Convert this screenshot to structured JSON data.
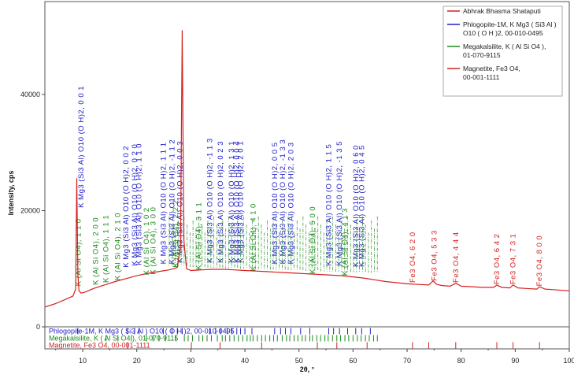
{
  "chart_data": {
    "type": "line",
    "xlabel": "2θ, °",
    "ylabel": "Intensity, cps",
    "xlim": [
      3,
      100
    ],
    "ylim": [
      0,
      56000
    ],
    "xticks": [
      10,
      20,
      30,
      40,
      50,
      60,
      70,
      80,
      90,
      100
    ],
    "yticks": [
      0,
      20000,
      40000
    ],
    "legend_position": "top-right",
    "legend": [
      {
        "text": [
          "Abhrak Bhasma Shataputi"
        ],
        "color": "#d62020"
      },
      {
        "text": [
          "Phlogopite-1M, K Mg3 ( Si3 Al )",
          "O10 ( O H )2, 00-010-0495"
        ],
        "color": "#2020c8"
      },
      {
        "text": [
          "Megakalsilite, K ( Al Si O4 ),",
          "01-070-9115"
        ],
        "color": "#1a8a1a"
      },
      {
        "text": [
          "Magnetite, Fe3 O4,",
          "00-001-1111"
        ],
        "color": "#d62020"
      }
    ],
    "series": [
      {
        "name": "Abhrak Bhasma Shataputi",
        "color": "#d62020",
        "x": [
          3,
          5,
          7,
          8.2,
          8.7,
          8.9,
          9.1,
          9.3,
          9.7,
          10.5,
          12,
          14,
          16,
          18,
          20,
          22,
          24,
          26,
          27.5,
          28.1,
          28.4,
          28.7,
          29.2,
          30,
          32,
          34,
          36,
          38,
          40,
          42,
          44,
          46,
          48,
          50,
          52,
          54,
          56,
          58,
          60,
          62,
          64,
          66,
          68,
          70,
          72,
          74,
          74.8,
          75.5,
          76.5,
          78,
          79,
          80,
          82,
          84,
          86,
          86.6,
          87.5,
          89,
          89.6,
          90.5,
          92,
          94,
          94.5,
          95.5,
          97,
          100
        ],
        "y": [
          3400,
          4000,
          4800,
          5300,
          6500,
          25500,
          9000,
          6200,
          5800,
          6000,
          6600,
          7200,
          7800,
          8300,
          8800,
          9200,
          9500,
          9800,
          10200,
          14000,
          51000,
          15000,
          10000,
          9700,
          9800,
          9900,
          9900,
          9800,
          9700,
          9600,
          9500,
          9400,
          9300,
          9200,
          9100,
          9000,
          8900,
          8800,
          8600,
          8400,
          8100,
          7800,
          7600,
          7400,
          7300,
          7200,
          7900,
          7300,
          7100,
          7000,
          7500,
          7000,
          6900,
          6800,
          6800,
          7200,
          6800,
          6700,
          7200,
          6700,
          6600,
          6500,
          6900,
          6500,
          6400,
          6200
        ]
      }
    ],
    "annotations": {
      "phlogopite": {
        "color": "#2020c8",
        "labels": [
          {
            "x": 9.7,
            "y": 20500,
            "text": "K Mg3 (Si3 Al) O10 (O H)2, 0 0 1"
          },
          {
            "x": 18.0,
            "y": 10200,
            "text": "K Mg3 (Si3 Al) O10 (O H)2, 0 0 2"
          },
          {
            "x": 19.6,
            "y": 10500,
            "text": "K Mg3 (Si3 Al) O10 (O H)2, 0 2 0"
          },
          {
            "x": 20.4,
            "y": 10600,
            "text": "K Mg3 (Si3 Al) O10 (O H)2, 1 1 0"
          },
          {
            "x": 24.9,
            "y": 10800,
            "text": "K Mg3 (Si3 Al) O10 (O H)2, 1 1 1"
          },
          {
            "x": 26.5,
            "y": 10800,
            "text": "K Mg3 (Si3 Al) O10 (O H)2, -1 1 2"
          },
          {
            "x": 28.0,
            "y": 11000,
            "text": "K Mg3 (Si3 Al) O10 (O H)2, 0 0 3"
          },
          {
            "x": 33.5,
            "y": 11000,
            "text": "K Mg3 (Si3 Al) O10 (O H)2, -1 1 3"
          },
          {
            "x": 35.5,
            "y": 11000,
            "text": "K Mg3 (Si3 Al) O10 (O H)2, 0 2 3"
          },
          {
            "x": 37.5,
            "y": 11000,
            "text": "K Mg3 (Si3 Al) O10 (O H)2, 1 3 1"
          },
          {
            "x": 38.5,
            "y": 11000,
            "text": "K Mg3 (Si3 Al) O10 (O H)2, 0 0 4"
          },
          {
            "x": 39.2,
            "y": 11000,
            "text": "K Mg3 (Si3 Al) O10 (O H)2, 2 0 1"
          },
          {
            "x": 45.5,
            "y": 10800,
            "text": "K Mg3 (Si3 Al) O10 (O H)2, 0 0 5"
          },
          {
            "x": 47.0,
            "y": 10800,
            "text": "K Mg3 (Si3 Al) O10 (O H)2, -1 3 3"
          },
          {
            "x": 48.5,
            "y": 10800,
            "text": "K Mg3 (Si3 Al) O10 (O H)2, 2 0 3"
          },
          {
            "x": 55.5,
            "y": 10500,
            "text": "K Mg3 (Si3 Al) O10 (O H)2, 1 1 5"
          },
          {
            "x": 57.5,
            "y": 10500,
            "text": "K Mg3 (Si3 Al) O10 (O H)2, -1 3 5"
          },
          {
            "x": 60.5,
            "y": 10300,
            "text": "K Mg3 (Si3 Al) O10 (O H)2, 0 6 0"
          },
          {
            "x": 61.6,
            "y": 10300,
            "text": "K Mg3 (Si3 Al) O10 (O H)2, 0 4 5"
          }
        ]
      },
      "megakalsilite": {
        "color": "#1a8a1a",
        "labels": [
          {
            "x": 9.2,
            "y": 7000,
            "text": "K (Al Si O4), 1 1 0"
          },
          {
            "x": 12.4,
            "y": 7200,
            "text": "K (Al Si O4), 2 0 0"
          },
          {
            "x": 14.3,
            "y": 7600,
            "text": "K (Al Si O4), 1 1 1"
          },
          {
            "x": 16.5,
            "y": 8000,
            "text": "K (Al Si O4), 2 1 0"
          },
          {
            "x": 21.8,
            "y": 8900,
            "text": "K (Al Si O4), 1 0 2"
          },
          {
            "x": 23.0,
            "y": 9000,
            "text": "K (Al Si O4), 3 0 0"
          },
          {
            "x": 27.2,
            "y": 10200,
            "text": "K (Al Si O4), 2 2 2"
          },
          {
            "x": 31.5,
            "y": 9800,
            "text": "K (Al Si O4), 3 1 1"
          },
          {
            "x": 41.5,
            "y": 9600,
            "text": "K (Al Si O4), 4 1 0"
          },
          {
            "x": 52.5,
            "y": 9100,
            "text": "K (Al Si O4), 5 0 0"
          },
          {
            "x": 58.5,
            "y": 8800,
            "text": "K (Al Si O4), 4 1 3"
          }
        ],
        "filler_range": [
          26,
          65
        ],
        "filler_top": 19000
      },
      "magnetite": {
        "color": "#d62020",
        "labels": [
          {
            "x": 71.0,
            "y": 7600,
            "text": "Fe3 O4, 6 2 0"
          },
          {
            "x": 75.0,
            "y": 7900,
            "text": "Fe3 O4, 5 3 3"
          },
          {
            "x": 79.0,
            "y": 7600,
            "text": "Fe3 O4, 4 4 4"
          },
          {
            "x": 86.6,
            "y": 7300,
            "text": "Fe3 O4, 6 4 2"
          },
          {
            "x": 89.6,
            "y": 7300,
            "text": "Fe3 O4, 7 3 1"
          },
          {
            "x": 94.5,
            "y": 7000,
            "text": "Fe3 O4, 8 0 0"
          }
        ]
      }
    },
    "reference_strips": [
      {
        "label": "Phlogopite-1M, K Mg3 ( Si3 Al ) O10 ( O H )2, 00-010-0495",
        "color": "#2020c8",
        "sticks": [
          9.1,
          18.2,
          19.6,
          20.4,
          24.9,
          26.5,
          27.5,
          28.4,
          33.5,
          34.6,
          35.5,
          36.7,
          37.6,
          38.5,
          39.2,
          40.0,
          41.3,
          45.5,
          46.6,
          47.5,
          48.5,
          50.3,
          52.0,
          55.5,
          56.4,
          57.5,
          59.0,
          60.5,
          61.6,
          63.2
        ]
      },
      {
        "label": "Megakalsilite, K ( Al Si O4 ), 01-070-9115",
        "color": "#1a8a1a",
        "sticks": [
          14.3,
          16.5,
          19.0,
          21.8,
          23.0,
          24.1,
          25.3,
          27.2,
          28.8,
          29.5,
          30.3,
          31.5,
          32.2,
          33.0,
          33.8,
          34.9,
          35.8,
          36.4,
          37.2,
          38.0,
          38.8,
          39.6,
          40.4,
          41.0,
          41.5,
          42.3,
          43.1,
          43.8,
          44.6,
          45.3,
          46.0,
          46.9,
          47.7,
          48.3,
          49.1,
          49.8,
          50.6,
          51.2,
          52.0,
          52.5,
          53.3,
          54.0,
          54.8,
          55.4,
          56.2,
          57.0,
          57.7,
          58.5,
          59.2,
          60.0,
          60.8,
          61.5,
          62.3,
          63.0,
          63.8,
          64.5
        ]
      },
      {
        "label": "Magnetite, Fe3 O4, 00-001-1111",
        "color": "#d62020",
        "sticks": [
          18.3,
          30.1,
          35.4,
          43.1,
          53.4,
          57.0,
          62.6,
          71.0,
          74.0,
          79.0,
          86.6,
          89.6,
          94.5
        ]
      }
    ]
  }
}
